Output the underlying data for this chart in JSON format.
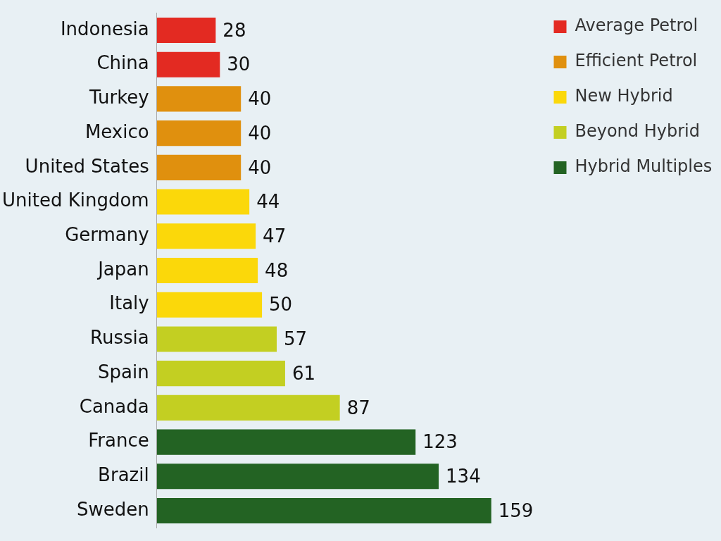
{
  "chart_data": {
    "type": "bar",
    "orientation": "horizontal",
    "categories": [
      "Indonesia",
      "China",
      "Turkey",
      "Mexico",
      "United States",
      "United Kingdom",
      "Germany",
      "Japan",
      "Italy",
      "Russia",
      "Spain",
      "Canada",
      "France",
      "Brazil",
      "Sweden"
    ],
    "series": [
      {
        "name": "Average Petrol",
        "color": "#e32a22",
        "values": [
          28,
          30,
          null,
          null,
          null,
          null,
          null,
          null,
          null,
          null,
          null,
          null,
          null,
          null,
          null
        ]
      },
      {
        "name": "Efficient Petrol",
        "color": "#e0900e",
        "values": [
          null,
          null,
          40,
          40,
          40,
          null,
          null,
          null,
          null,
          null,
          null,
          null,
          null,
          null,
          null
        ]
      },
      {
        "name": "New Hybrid",
        "color": "#fbd80a",
        "values": [
          null,
          null,
          null,
          null,
          null,
          44,
          47,
          48,
          50,
          null,
          null,
          null,
          null,
          null,
          null
        ]
      },
      {
        "name": "Beyond Hybrid",
        "color": "#c3cf22",
        "values": [
          null,
          null,
          null,
          null,
          null,
          null,
          null,
          null,
          null,
          57,
          61,
          87,
          null,
          null,
          null
        ]
      },
      {
        "name": "Hybrid Multiples",
        "color": "#236323",
        "values": [
          null,
          null,
          null,
          null,
          null,
          null,
          null,
          null,
          null,
          null,
          null,
          null,
          123,
          134,
          159
        ]
      }
    ],
    "data_labels": true,
    "legend": "top right",
    "grid": false
  }
}
